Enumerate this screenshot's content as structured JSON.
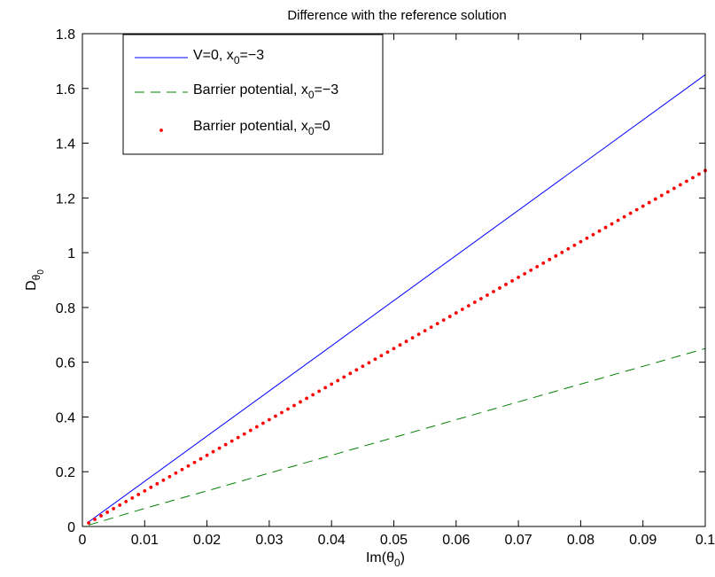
{
  "chart_data": {
    "type": "line",
    "title": "Difference with the reference solution",
    "xlabel": {
      "main": "Im(θ",
      "sub": "0",
      "tail": ")"
    },
    "ylabel": {
      "main": "D",
      "sub": "θ",
      "subsub": "0"
    },
    "xlim": [
      0,
      0.1
    ],
    "ylim": [
      0,
      1.8
    ],
    "xticks": [
      0,
      0.01,
      0.02,
      0.03,
      0.04,
      0.05,
      0.06,
      0.07,
      0.08,
      0.09,
      0.1
    ],
    "xtick_labels": [
      "0",
      "0.01",
      "0.02",
      "0.03",
      "0.04",
      "0.05",
      "0.06",
      "0.07",
      "0.08",
      "0.09",
      "0.1"
    ],
    "yticks": [
      0,
      0.2,
      0.4,
      0.6,
      0.8,
      1.0,
      1.2,
      1.4,
      1.6,
      1.8
    ],
    "ytick_labels": [
      "0",
      "0.2",
      "0.4",
      "0.6",
      "0.8",
      "1",
      "1.2",
      "1.4",
      "1.6",
      "1.8"
    ],
    "grid": false,
    "legend_position": "top-left",
    "series": [
      {
        "name": {
          "main": "V=0, x",
          "sub": "0",
          "tail": "=−3"
        },
        "style": "solid",
        "color": "#0000ff",
        "x": [
          0.001,
          0.1
        ],
        "y": [
          0.0165,
          1.65
        ]
      },
      {
        "name": {
          "main": "Barrier potential, x",
          "sub": "0",
          "tail": "=−3"
        },
        "style": "dashed",
        "color": "#008000",
        "x": [
          0.001,
          0.01,
          0.02,
          0.03,
          0.04,
          0.05,
          0.06,
          0.07,
          0.08,
          0.09,
          0.1
        ],
        "y": [
          0.005,
          0.066,
          0.13,
          0.195,
          0.26,
          0.325,
          0.39,
          0.455,
          0.52,
          0.585,
          0.65
        ]
      },
      {
        "name": {
          "main": "Barrier potential, x",
          "sub": "0",
          "tail": "=0"
        },
        "style": "dotted",
        "color": "#ff0000",
        "x_start": 0.001,
        "x_end": 0.1,
        "x_step": 0.001,
        "slope": 13.0
      }
    ]
  }
}
